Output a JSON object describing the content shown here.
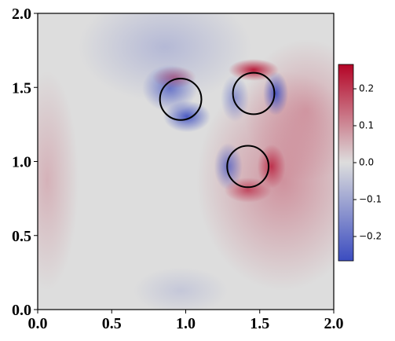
{
  "chart_data": {
    "type": "field",
    "xlim": [
      0,
      2
    ],
    "ylim": [
      0,
      2
    ],
    "xticks": [
      {
        "value": 0,
        "label": "0.0"
      },
      0.5,
      {
        "value": 1,
        "label": "1.0"
      },
      1.5,
      {
        "value": 2,
        "label": "2.0"
      }
    ],
    "yticks": [
      {
        "value": 0,
        "label": "0.0"
      },
      0.5,
      {
        "value": 1,
        "label": "1.0"
      },
      1.5,
      {
        "value": 2,
        "label": "2.0"
      }
    ],
    "colormap": [
      "#3b4cc0",
      "#dddddd",
      "#b40426"
    ],
    "clim": [
      -0.266,
      0.266
    ],
    "cticks": [
      {
        "value": -0.2,
        "label": "−0.2"
      },
      {
        "value": -0.1,
        "label": "−0.1"
      },
      {
        "value": 0,
        "label": "0.0"
      },
      0.1,
      0.2
    ],
    "circles": [
      {
        "x": 0.966,
        "y": 1.42,
        "r": 0.14
      },
      {
        "x": 1.459,
        "y": 1.459,
        "r": 0.14
      },
      {
        "x": 1.42,
        "y": 0.966,
        "r": 0.14
      }
    ]
  }
}
